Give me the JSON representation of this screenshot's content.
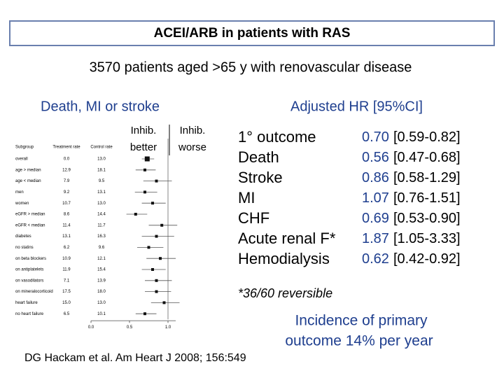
{
  "header": {
    "title": "ACEI/ARB in patients with RAS",
    "subtitle": "3570 patients aged >65 y with renovascular disease"
  },
  "left_heading": "Death, MI or stroke",
  "right_heading": "Adjusted HR [95%CI]",
  "forest": {
    "better_label": [
      "Inhib.",
      "better"
    ],
    "worse_label": [
      "Inhib.",
      "worse"
    ],
    "columns": [
      "Subgroup",
      "Treatment rate",
      "Control rate"
    ],
    "xlim": [
      0,
      1.1
    ],
    "xticks": [
      {
        "value": 0,
        "label": "0.0"
      },
      {
        "value": 0.5,
        "label": "0.5"
      },
      {
        "value": 1,
        "label": "1.0"
      }
    ],
    "reference": 1,
    "rows": [
      {
        "label": "overall",
        "treatment": "0.0",
        "control": "13.0",
        "hr": 0.73,
        "lo": 0.66,
        "hi": 0.82
      },
      {
        "label": "age > median",
        "treatment": "12.9",
        "control": "18.1",
        "hr": 0.7,
        "lo": 0.58,
        "hi": 0.84
      },
      {
        "label": "age < median",
        "treatment": "7.9",
        "control": "9.5",
        "hr": 0.85,
        "lo": 0.68,
        "hi": 1.05
      },
      {
        "label": "men",
        "treatment": "9.2",
        "control": "13.1",
        "hr": 0.7,
        "lo": 0.57,
        "hi": 0.86
      },
      {
        "label": "women",
        "treatment": "10.7",
        "control": "13.0",
        "hr": 0.8,
        "lo": 0.66,
        "hi": 0.97
      },
      {
        "label": "eGFR > median",
        "treatment": "8.6",
        "control": "14.4",
        "hr": 0.58,
        "lo": 0.46,
        "hi": 0.73
      },
      {
        "label": "eGFR < median",
        "treatment": "11.4",
        "control": "11.7",
        "hr": 0.92,
        "lo": 0.75,
        "hi": 1.12
      },
      {
        "label": "diabetes",
        "treatment": "13.1",
        "control": "16.3",
        "hr": 0.85,
        "lo": 0.66,
        "hi": 1.08
      },
      {
        "label": "no statins",
        "treatment": "6.2",
        "control": "9.6",
        "hr": 0.75,
        "lo": 0.6,
        "hi": 0.94
      },
      {
        "label": "on beta blockers",
        "treatment": "10.9",
        "control": "12.1",
        "hr": 0.9,
        "lo": 0.72,
        "hi": 1.1
      },
      {
        "label": "on antiplatelets",
        "treatment": "11.9",
        "control": "15.4",
        "hr": 0.8,
        "lo": 0.66,
        "hi": 0.97
      },
      {
        "label": "on vasodilators",
        "treatment": "7.1",
        "control": "13.9",
        "hr": 0.85,
        "lo": 0.7,
        "hi": 1.05
      },
      {
        "label": "on mineralocorticoid",
        "treatment": "17.5",
        "control": "18.0",
        "hr": 0.85,
        "lo": 0.7,
        "hi": 1.04
      },
      {
        "label": "heart failure",
        "treatment": "15.0",
        "control": "13.0",
        "hr": 0.95,
        "lo": 0.78,
        "hi": 1.15
      },
      {
        "label": "no heart failure",
        "treatment": "6.5",
        "control": "10.1",
        "hr": 0.7,
        "lo": 0.58,
        "hi": 0.85
      }
    ]
  },
  "outcomes": [
    {
      "name": "1° outcome",
      "hr": "0.70",
      "ci": "[0.59-0.82]"
    },
    {
      "name": "Death",
      "hr": "0.56",
      "ci": "[0.47-0.68]"
    },
    {
      "name": "Stroke",
      "hr": "0.86",
      "ci": "[0.58-1.29]"
    },
    {
      "name": "MI",
      "hr": "1.07",
      "ci": "[0.76-1.51]"
    },
    {
      "name": "CHF",
      "hr": "0.69",
      "ci": "[0.53-0.90]"
    },
    {
      "name": "Acute renal F*",
      "hr": "1.87",
      "ci": "[1.05-3.33]"
    },
    {
      "name": "Hemodialysis",
      "hr": "0.62",
      "ci": "[0.42-0.92]"
    }
  ],
  "footnote": "*36/60 reversible",
  "incidence": [
    "Incidence of primary",
    "outcome 14% per year"
  ],
  "citation": "DG Hackam et al. Am Heart J 2008; 156:549"
}
